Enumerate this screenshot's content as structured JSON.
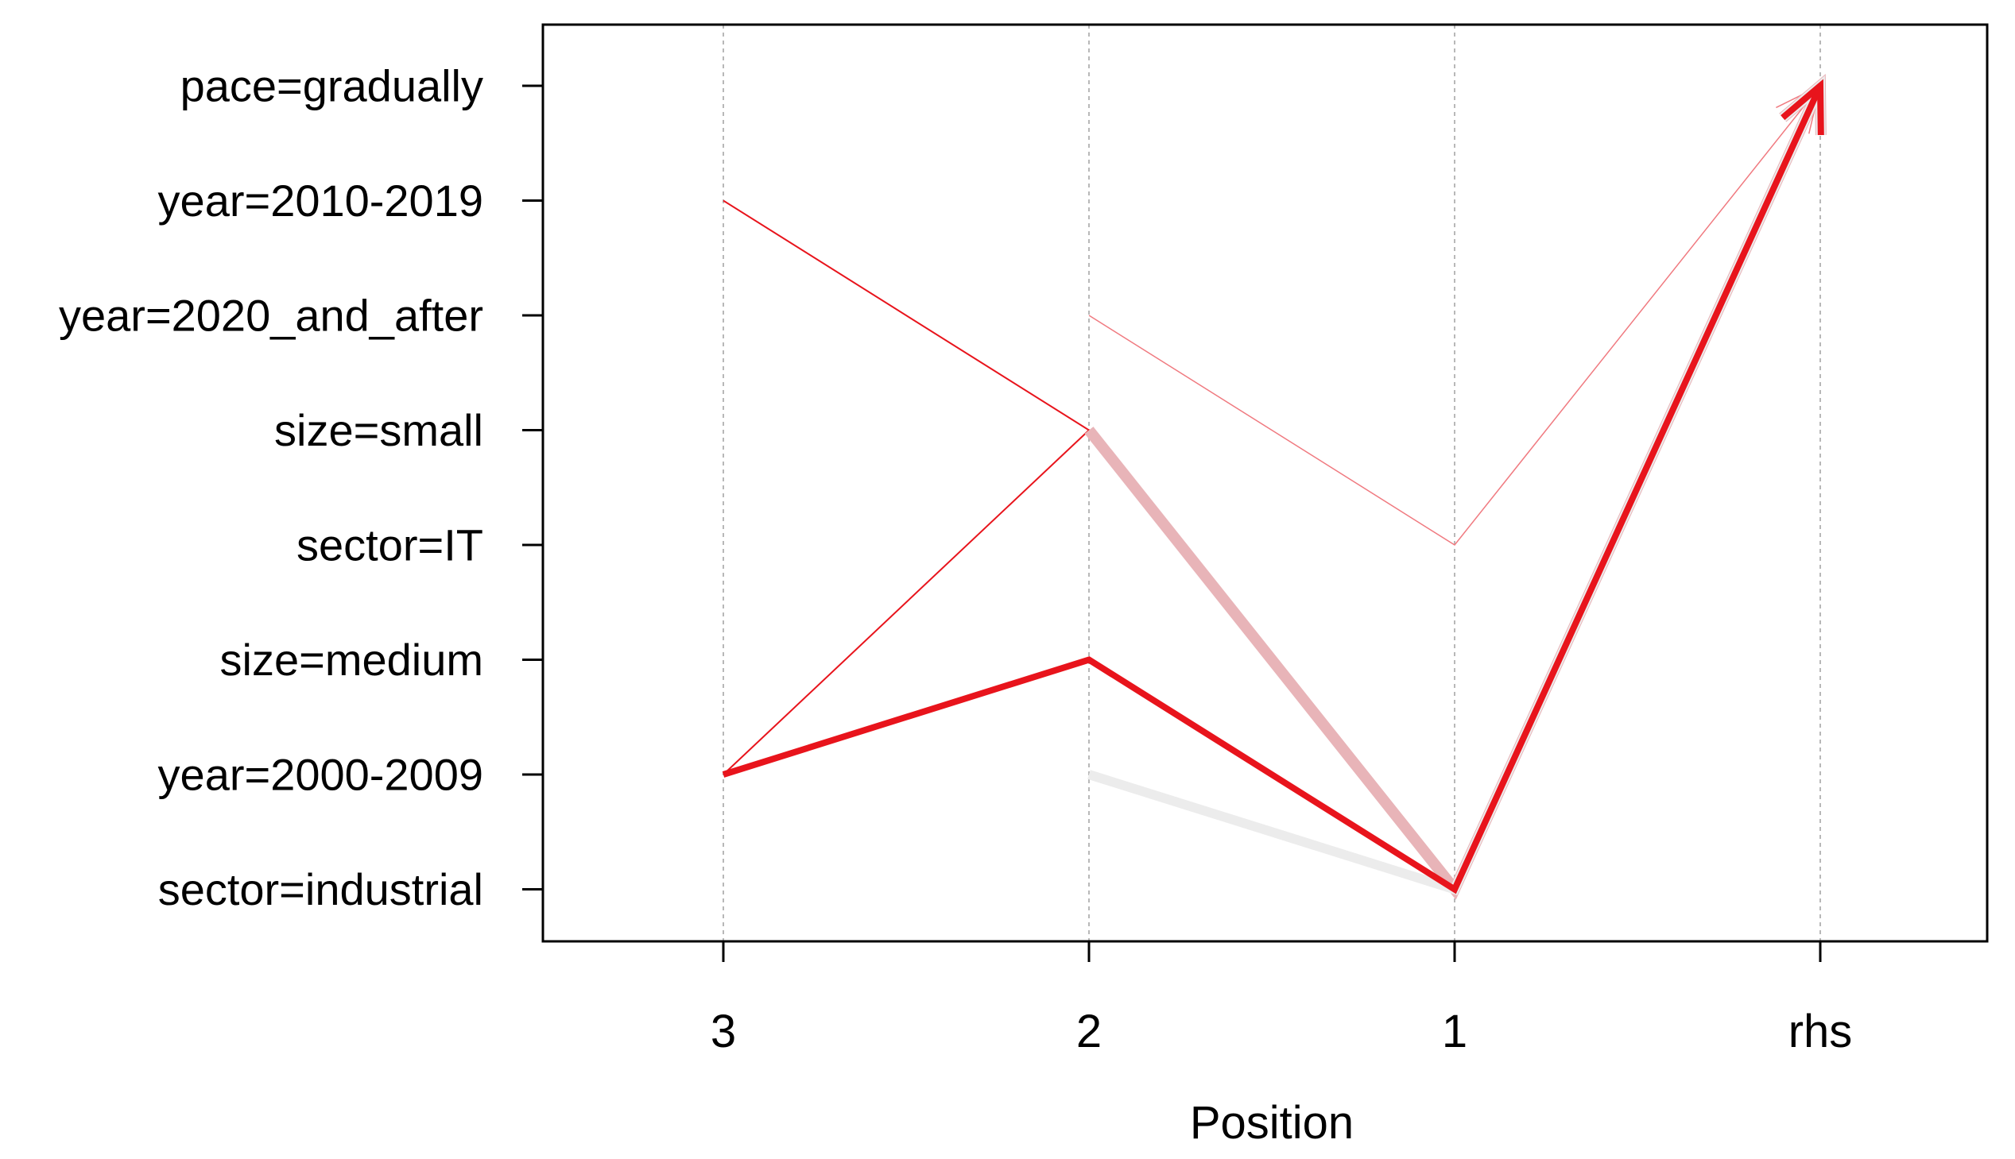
{
  "chart_data": {
    "type": "parallel-coordinates",
    "xlabel": "Position",
    "x_categories": [
      "3",
      "2",
      "1",
      "rhs"
    ],
    "y_items": [
      "pace=gradually",
      "year=2010-2019",
      "year=2020_and_after",
      "size=small",
      "sector=IT",
      "size=medium",
      "year=2000-2009",
      "sector=industrial"
    ],
    "grid": true,
    "rules": [
      {
        "path": [
          "year=2010-2019",
          "size=small",
          "sector=industrial",
          "pace=gradually"
        ],
        "width": 2,
        "color": "#e8141c"
      },
      {
        "path": [
          "year=2000-2009",
          "size=small",
          "sector=industrial",
          "pace=gradually"
        ],
        "width": 2,
        "color": "#e8141c"
      },
      {
        "path": [
          null,
          "year=2020_and_after",
          "sector=IT",
          "pace=gradually"
        ],
        "width": 1.5,
        "color": "#f07a80"
      },
      {
        "path": [
          null,
          "size=small",
          "sector=industrial",
          "pace=gradually"
        ],
        "width": 14,
        "color": "#e8b4b8"
      },
      {
        "path": [
          null,
          "year=2000-2009",
          "sector=industrial",
          "pace=gradually"
        ],
        "width": 12,
        "color": "#ececec"
      },
      {
        "path": [
          "year=2000-2009",
          "size=medium",
          "sector=industrial",
          "pace=gradually"
        ],
        "width": 8,
        "color": "#e8141c"
      }
    ]
  }
}
